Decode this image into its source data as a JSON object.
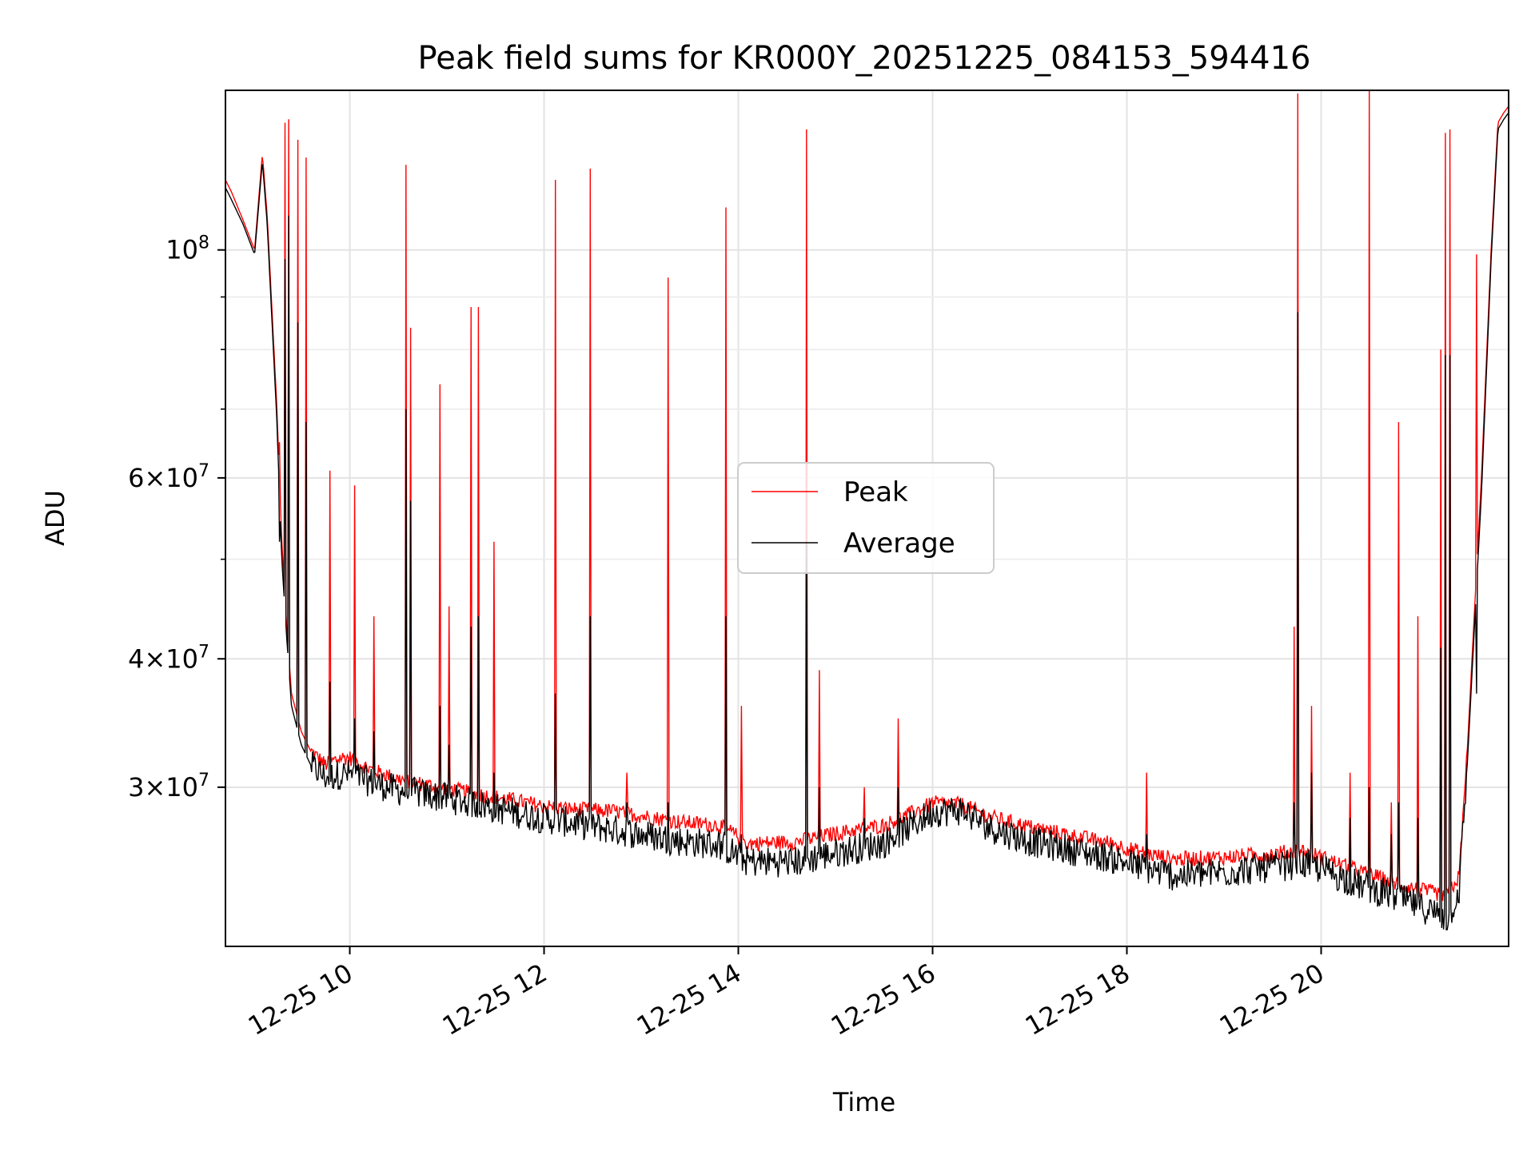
{
  "chart_data": {
    "type": "line",
    "title": "Peak field sums for KR000Y_20251225_084153_594416",
    "xlabel": "Time",
    "ylabel": "ADU",
    "yscale": "log",
    "grid": true,
    "legend_position": "center",
    "xlim": [
      8.72,
      21.93
    ],
    "ylim": [
      21000000,
      143000000
    ],
    "x_ticks": [
      {
        "value": 10,
        "label": "12-25 10"
      },
      {
        "value": 12,
        "label": "12-25 12"
      },
      {
        "value": 14,
        "label": "12-25 14"
      },
      {
        "value": 16,
        "label": "12-25 16"
      },
      {
        "value": 18,
        "label": "12-25 18"
      },
      {
        "value": 20,
        "label": "12-25 20"
      }
    ],
    "y_ticks": [
      {
        "value": 30000000,
        "mantissa": "3",
        "exponent": "7"
      },
      {
        "value": 40000000,
        "mantissa": "4",
        "exponent": "7"
      },
      {
        "value": 60000000,
        "mantissa": "6",
        "exponent": "7"
      },
      {
        "value": 100000000,
        "mantissa": "",
        "exponent": "8"
      }
    ],
    "y_minor_ticks": [
      50000000,
      70000000,
      80000000,
      90000000
    ],
    "series": [
      {
        "name": "Peak",
        "color": "#ff0000",
        "x": [
          8.72,
          8.78,
          8.9,
          9.02,
          9.1,
          9.15,
          9.25,
          9.3,
          9.35,
          9.4,
          9.5,
          9.6,
          9.75,
          9.9,
          10.0,
          10.2,
          10.5,
          10.8,
          11.0,
          11.3,
          11.6,
          12.0,
          12.3,
          12.7,
          13.0,
          13.4,
          13.8,
          13.95,
          14.1,
          14.6,
          15.0,
          15.5,
          15.8,
          16.0,
          16.3,
          16.6,
          17.0,
          17.5,
          17.85,
          18.2,
          18.5,
          19.0,
          19.5,
          19.8,
          20.0,
          20.4,
          20.8,
          21.0,
          21.2,
          21.3,
          21.42,
          21.5,
          21.65,
          21.75,
          21.82,
          21.88,
          21.93
        ],
        "y": [
          117000000,
          114000000,
          107000000,
          100000000,
          124000000,
          108000000,
          70000000,
          52000000,
          43000000,
          37000000,
          34000000,
          32500000,
          31500000,
          32000000,
          32000000,
          31200000,
          30500000,
          30100000,
          29900000,
          29500000,
          29200000,
          28700000,
          28500000,
          28400000,
          28100000,
          27700000,
          27500000,
          27000000,
          26400000,
          26500000,
          27000000,
          27500000,
          28300000,
          28900000,
          28800000,
          28000000,
          27400000,
          26800000,
          26400000,
          25800000,
          25500000,
          25600000,
          25800000,
          26000000,
          25600000,
          24800000,
          24100000,
          23800000,
          23600000,
          23500000,
          24500000,
          32000000,
          60000000,
          100000000,
          133000000,
          136000000,
          138000000
        ]
      },
      {
        "name": "Average",
        "color": "#000000",
        "x": [
          8.72,
          8.78,
          8.9,
          9.02,
          9.1,
          9.15,
          9.25,
          9.3,
          9.35,
          9.4,
          9.5,
          9.6,
          9.75,
          9.9,
          10.0,
          10.2,
          10.5,
          10.8,
          11.0,
          11.3,
          11.6,
          12.0,
          12.3,
          12.7,
          13.0,
          13.4,
          13.8,
          13.95,
          14.1,
          14.6,
          15.0,
          15.5,
          15.8,
          16.0,
          16.3,
          16.6,
          17.0,
          17.5,
          17.85,
          18.2,
          18.5,
          19.0,
          19.5,
          19.8,
          20.0,
          20.4,
          20.8,
          21.0,
          21.2,
          21.3,
          21.42,
          21.5,
          21.65,
          21.75,
          21.82,
          21.88,
          21.93
        ],
        "y": [
          115000000,
          112000000,
          106000000,
          99000000,
          122000000,
          106000000,
          68000000,
          50000000,
          42000000,
          36000000,
          33000000,
          31500000,
          30700000,
          30900000,
          30900000,
          30400000,
          29800000,
          29500000,
          29300000,
          28900000,
          28500000,
          28000000,
          27700000,
          27300000,
          27000000,
          26600000,
          26400000,
          25900000,
          25400000,
          25400000,
          25900000,
          26500000,
          27600000,
          28400000,
          28500000,
          27400000,
          26600000,
          26000000,
          25600000,
          25000000,
          24600000,
          24800000,
          25100000,
          25300000,
          25000000,
          24100000,
          23400000,
          23000000,
          22600000,
          22300000,
          23800000,
          31000000,
          58000000,
          98000000,
          131000000,
          134000000,
          136000000
        ]
      }
    ],
    "spikes": [
      {
        "x": 9.28,
        "peak": 65000000,
        "average": 52000000
      },
      {
        "x": 9.33,
        "peak": 133000000,
        "average": 98000000
      },
      {
        "x": 9.37,
        "peak": 134000000,
        "average": 108000000
      },
      {
        "x": 9.47,
        "peak": 128000000,
        "average": 85000000
      },
      {
        "x": 9.55,
        "peak": 123000000,
        "average": 68000000
      },
      {
        "x": 9.8,
        "peak": 61000000,
        "average": 38000000
      },
      {
        "x": 10.05,
        "peak": 59000000,
        "average": 35000000
      },
      {
        "x": 10.25,
        "peak": 44000000,
        "average": 34000000
      },
      {
        "x": 10.58,
        "peak": 121000000,
        "average": 70000000
      },
      {
        "x": 10.63,
        "peak": 84000000,
        "average": 57000000
      },
      {
        "x": 10.93,
        "peak": 74000000,
        "average": 36000000
      },
      {
        "x": 11.02,
        "peak": 45000000,
        "average": 33000000
      },
      {
        "x": 11.25,
        "peak": 88000000,
        "average": 43000000
      },
      {
        "x": 11.32,
        "peak": 88000000,
        "average": 44000000
      },
      {
        "x": 11.48,
        "peak": 52000000,
        "average": 31000000
      },
      {
        "x": 12.12,
        "peak": 117000000,
        "average": 37000000
      },
      {
        "x": 12.48,
        "peak": 120000000,
        "average": 44000000
      },
      {
        "x": 12.85,
        "peak": 31000000,
        "average": 29000000
      },
      {
        "x": 13.28,
        "peak": 94000000,
        "average": 29000000
      },
      {
        "x": 13.87,
        "peak": 110000000,
        "average": 44000000
      },
      {
        "x": 14.03,
        "peak": 36000000,
        "average": 27000000
      },
      {
        "x": 14.7,
        "peak": 131000000,
        "average": 52000000
      },
      {
        "x": 14.83,
        "peak": 39000000,
        "average": 30000000
      },
      {
        "x": 15.3,
        "peak": 30000000,
        "average": 28000000
      },
      {
        "x": 15.65,
        "peak": 35000000,
        "average": 30000000
      },
      {
        "x": 18.2,
        "peak": 31000000,
        "average": 27000000
      },
      {
        "x": 19.72,
        "peak": 43000000,
        "average": 29000000
      },
      {
        "x": 19.76,
        "peak": 142000000,
        "average": 87000000
      },
      {
        "x": 19.9,
        "peak": 36000000,
        "average": 31000000
      },
      {
        "x": 20.3,
        "peak": 31000000,
        "average": 28000000
      },
      {
        "x": 20.5,
        "peak": 143000000,
        "average": 30000000
      },
      {
        "x": 20.72,
        "peak": 29000000,
        "average": 27000000
      },
      {
        "x": 20.8,
        "peak": 68000000,
        "average": 29000000
      },
      {
        "x": 21.0,
        "peak": 44000000,
        "average": 28000000
      },
      {
        "x": 21.23,
        "peak": 80000000,
        "average": 41000000
      },
      {
        "x": 21.28,
        "peak": 130000000,
        "average": 79000000
      },
      {
        "x": 21.33,
        "peak": 131000000,
        "average": 79000000
      },
      {
        "x": 21.6,
        "peak": 99000000,
        "average": 37000000
      }
    ]
  }
}
